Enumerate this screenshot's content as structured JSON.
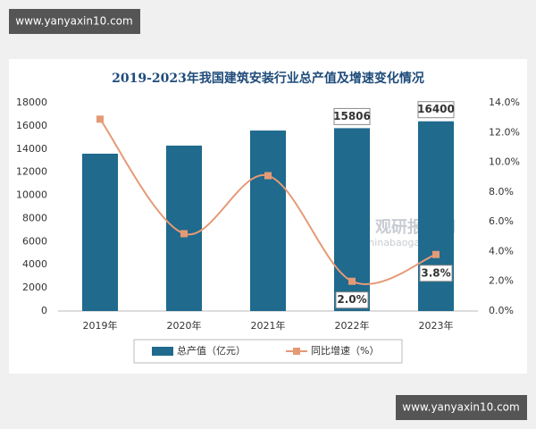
{
  "watermarks": [
    "www.yanyaxin10.com",
    "www.yanyaxin10.com"
  ],
  "chart_data": {
    "type": "bar",
    "title": "2019-2023年我国建筑安装行业总产值及增速变化情况",
    "categories": [
      "2019年",
      "2020年",
      "2021年",
      "2022年",
      "2023年"
    ],
    "series": [
      {
        "name": "总产值（亿元）",
        "color": "#1f6a8d",
        "values": [
          13600,
          14300,
          15600,
          15806,
          16400
        ],
        "value_labels": [
          null,
          null,
          null,
          "15806",
          "16400"
        ]
      },
      {
        "name": "同比增速（%）",
        "color": "#e59a76",
        "axis": "y2",
        "type": "line",
        "values": [
          12.9,
          5.2,
          9.1,
          2.0,
          3.8
        ],
        "value_labels": [
          null,
          null,
          null,
          "2.0%",
          "3.8%"
        ]
      }
    ],
    "ylim": [
      0,
      18000
    ],
    "yticks": [
      0,
      2000,
      4000,
      6000,
      8000,
      10000,
      12000,
      14000,
      16000,
      18000
    ],
    "y2lim": [
      0,
      14
    ],
    "y2ticks": [
      {
        "value": 0,
        "label": "0.0%"
      },
      {
        "value": 2,
        "label": "2.0%"
      },
      {
        "value": 4,
        "label": "4.0%"
      },
      {
        "value": 6,
        "label": "6.0%"
      },
      {
        "value": 8,
        "label": "8.0%"
      },
      {
        "value": 10,
        "label": "10.0%"
      },
      {
        "value": 12,
        "label": "12.0%"
      },
      {
        "value": 14,
        "label": "14.0%"
      }
    ],
    "watermark": [
      "观研报告网",
      "chinabaogao.com"
    ],
    "legend": "bottom"
  }
}
